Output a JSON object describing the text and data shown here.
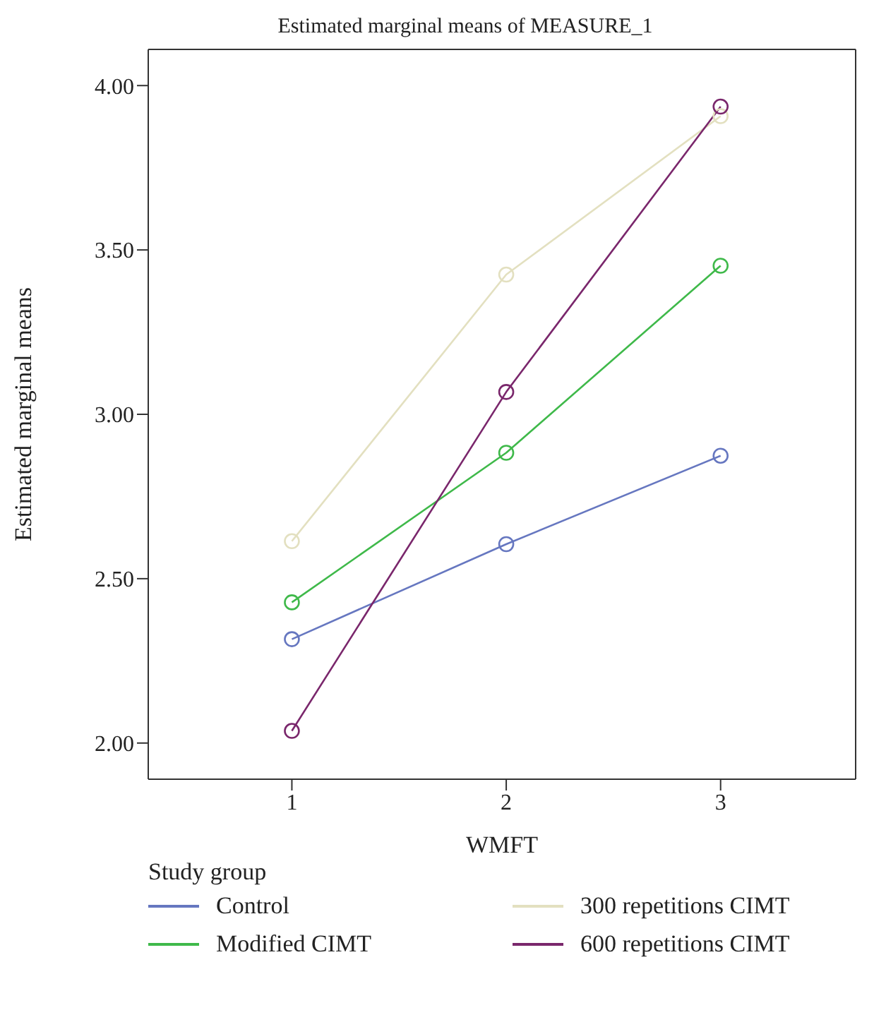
{
  "chart_data": {
    "type": "line",
    "title": "Estimated marginal means of MEASURE_1",
    "xlabel": "WMFT",
    "ylabel": "Estimated marginal means",
    "legend_title": "Study group",
    "x": [
      1,
      2,
      3
    ],
    "series": [
      {
        "name": "Control",
        "color": "#6677c0",
        "values": [
          2.316,
          2.605,
          2.874
        ]
      },
      {
        "name": "Modified CIMT",
        "color": "#3fb94a",
        "values": [
          2.428,
          2.883,
          3.452
        ]
      },
      {
        "name": "300 repetitions CIMT",
        "color": "#e3e0c0",
        "values": [
          2.614,
          3.425,
          3.907
        ]
      },
      {
        "name": "600 repetitions CIMT",
        "color": "#7a276c",
        "values": [
          2.037,
          3.068,
          3.936
        ]
      }
    ],
    "xlim": [
      0.33,
      3.63
    ],
    "xticks": [
      1,
      2,
      3
    ],
    "ylim": [
      1.89,
      4.11
    ],
    "yticks": [
      {
        "value": 2,
        "label": "2.00"
      },
      {
        "value": 2.5,
        "label": "2.50"
      },
      {
        "value": 3,
        "label": "3.00"
      },
      {
        "value": 3.5,
        "label": "3.50"
      },
      {
        "value": 4,
        "label": "4.00"
      }
    ],
    "grid": false,
    "legend": "bottom",
    "marker": "circle",
    "line_style": "solid"
  }
}
